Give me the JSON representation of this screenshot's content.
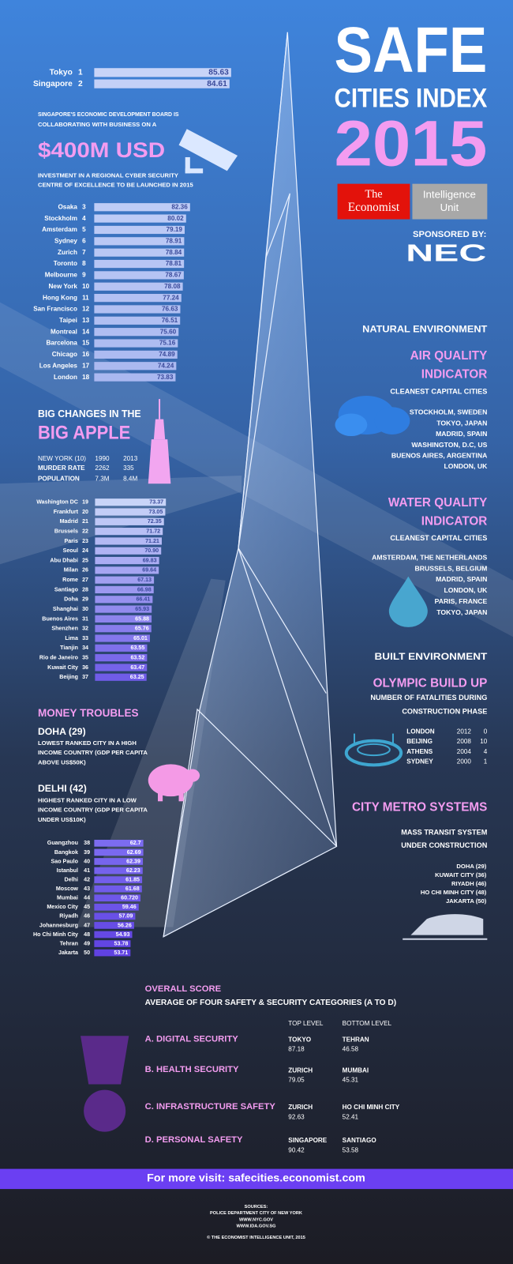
{
  "header": {
    "title": "SAFE",
    "subtitle": "CITIES INDEX",
    "year": "2015",
    "logo_economist": [
      "The",
      "Economist"
    ],
    "logo_eiu": [
      "Intelligence",
      "Unit"
    ],
    "sponsor_label": "SPONSORED BY:",
    "sponsor": "NEC"
  },
  "rankings": [
    {
      "rows": [
        {
          "city": "Tokyo",
          "rank": 1,
          "score": "85.63"
        },
        {
          "city": "Singapore",
          "rank": 2,
          "score": "84.61"
        }
      ]
    },
    {
      "rows": [
        {
          "city": "Osaka",
          "rank": 3,
          "score": "82.36"
        },
        {
          "city": "Stockholm",
          "rank": 4,
          "score": "80.02"
        },
        {
          "city": "Amsterdam",
          "rank": 5,
          "score": "79.19"
        },
        {
          "city": "Sydney",
          "rank": 6,
          "score": "78.91"
        },
        {
          "city": "Zurich",
          "rank": 7,
          "score": "78.84"
        },
        {
          "city": "Toronto",
          "rank": 8,
          "score": "78.81"
        },
        {
          "city": "Melbourne",
          "rank": 9,
          "score": "78.67"
        },
        {
          "city": "New York",
          "rank": 10,
          "score": "78.08"
        },
        {
          "city": "Hong Kong",
          "rank": 11,
          "score": "77.24"
        },
        {
          "city": "San Francisco",
          "rank": 12,
          "score": "76.63"
        },
        {
          "city": "Taipei",
          "rank": 13,
          "score": "76.51"
        },
        {
          "city": "Montreal",
          "rank": 14,
          "score": "75.60"
        },
        {
          "city": "Barcelona",
          "rank": 15,
          "score": "75.16"
        },
        {
          "city": "Chicago",
          "rank": 16,
          "score": "74.89"
        },
        {
          "city": "Los Angeles",
          "rank": 17,
          "score": "74.24"
        },
        {
          "city": "London",
          "rank": 18,
          "score": "73.83"
        }
      ]
    },
    {
      "rows": [
        {
          "city": "Washington DC",
          "rank": 19,
          "score": "73.37"
        },
        {
          "city": "Frankfurt",
          "rank": 20,
          "score": "73.05"
        },
        {
          "city": "Madrid",
          "rank": 21,
          "score": "72.35"
        },
        {
          "city": "Brussels",
          "rank": 22,
          "score": "71.72"
        },
        {
          "city": "Paris",
          "rank": 23,
          "score": "71.21"
        },
        {
          "city": "Seoul",
          "rank": 24,
          "score": "70.90"
        },
        {
          "city": "Abu Dhabi",
          "rank": 25,
          "score": "69.83"
        },
        {
          "city": "Milan",
          "rank": 26,
          "score": "69.64"
        },
        {
          "city": "Rome",
          "rank": 27,
          "score": "67.13"
        },
        {
          "city": "Santiago",
          "rank": 28,
          "score": "66.98"
        },
        {
          "city": "Doha",
          "rank": 29,
          "score": "66.41"
        },
        {
          "city": "Shanghai",
          "rank": 30,
          "score": "65.93"
        },
        {
          "city": "Buenos Aires",
          "rank": 31,
          "score": "65.88"
        },
        {
          "city": "Shenzhen",
          "rank": 32,
          "score": "65.76"
        },
        {
          "city": "Lima",
          "rank": 33,
          "score": "65.01"
        },
        {
          "city": "Tianjin",
          "rank": 34,
          "score": "63.55"
        },
        {
          "city": "Rio de Janeiro",
          "rank": 35,
          "score": "63.52"
        },
        {
          "city": "Kuwait City",
          "rank": 36,
          "score": "63.47"
        },
        {
          "city": "Beijing",
          "rank": 37,
          "score": "63.25"
        }
      ]
    },
    {
      "rows": [
        {
          "city": "Guangzhou",
          "rank": 38,
          "score": "62.7"
        },
        {
          "city": "Bangkok",
          "rank": 39,
          "score": "62.69"
        },
        {
          "city": "Sao Paulo",
          "rank": 40,
          "score": "62.39"
        },
        {
          "city": "Istanbul",
          "rank": 41,
          "score": "62.23"
        },
        {
          "city": "Delhi",
          "rank": 42,
          "score": "61.85"
        },
        {
          "city": "Moscow",
          "rank": 43,
          "score": "61.68"
        },
        {
          "city": "Mumbai",
          "rank": 44,
          "score": "60.720"
        },
        {
          "city": "Mexico City",
          "rank": 45,
          "score": "59.46"
        },
        {
          "city": "Riyadh",
          "rank": 46,
          "score": "57.09"
        },
        {
          "city": "Johannesburg",
          "rank": 47,
          "score": "56.26"
        },
        {
          "city": "Ho Chi Minh City",
          "rank": 48,
          "score": "54.93"
        },
        {
          "city": "Tehran",
          "rank": 49,
          "score": "53.78"
        },
        {
          "city": "Jakarta",
          "rank": 50,
          "score": "53.71"
        }
      ]
    }
  ],
  "cyber": {
    "lines": [
      "SINGAPORE'S ECONOMIC DEVELOPMENT BOARD IS",
      "COLLABORATING WITH BUSINESS ON A"
    ],
    "amount": "$400M USD",
    "detail": [
      "INVESTMENT IN A REGIONAL CYBER SECURITY",
      "CENTRE OF EXCELLENCE TO BE LAUNCHED IN 2015"
    ]
  },
  "big_apple": {
    "title": "BIG CHANGES IN THE",
    "highlight": "BIG APPLE",
    "header": [
      "NEW YORK (10)",
      "1990",
      "2013"
    ],
    "rows": [
      [
        "MURDER RATE",
        "2262",
        "335"
      ],
      [
        "POPULATION",
        "7.3M",
        "8.4M"
      ]
    ]
  },
  "money": {
    "title": "MONEY TROUBLES",
    "items": [
      {
        "heading": "DOHA (29)",
        "lines": [
          "LOWEST RANKED CITY IN A HIGH",
          "INCOME COUNTRY (GDP PER CAPITA",
          "ABOVE US$50K)"
        ]
      },
      {
        "heading": "DELHI (42)",
        "lines": [
          "HIGHEST RANKED CITY IN A LOW",
          "INCOME COUNTRY (GDP PER CAPITA",
          "UNDER US$10K)"
        ]
      }
    ]
  },
  "natural": {
    "title": "NATURAL ENVIRONMENT",
    "air": {
      "title": [
        "AIR QUALITY",
        "INDICATOR"
      ],
      "subtitle": "CLEANEST CAPITAL CITIES",
      "cities": [
        "STOCKHOLM, SWEDEN",
        "TOKYO, JAPAN",
        "MADRID, SPAIN",
        "WASHINGTON, D.C, US",
        "BUENOS AIRES, ARGENTINA",
        "LONDON, UK"
      ]
    },
    "water": {
      "title": [
        "WATER QUALITY",
        "INDICATOR"
      ],
      "subtitle": "CLEANEST CAPITAL CITIES",
      "cities": [
        "AMSTERDAM, THE NETHERLANDS",
        "BRUSSELS, BELGIUM",
        "MADRID, SPAIN",
        "LONDON, UK",
        "PARIS, FRANCE",
        "TOKYO, JAPAN"
      ]
    }
  },
  "built": {
    "title": "BUILT ENVIRONMENT",
    "olympic": {
      "title": "OLYMPIC BUILD UP",
      "subtitle": [
        "NUMBER OF FATALITIES DURING",
        "CONSTRUCTION PHASE"
      ],
      "rows": [
        [
          "LONDON",
          "2012",
          "0"
        ],
        [
          "BEIJING",
          "2008",
          "10"
        ],
        [
          "ATHENS",
          "2004",
          "4"
        ],
        [
          "SYDNEY",
          "2000",
          "1"
        ]
      ]
    },
    "metro": {
      "title": "CITY METRO SYSTEMS",
      "subtitle": [
        "MASS TRANSIT SYSTEM",
        "UNDER CONSTRUCTION"
      ],
      "cities": [
        "DOHA (29)",
        "KUWAIT CITY (36)",
        "RIYADH (46)",
        "HO CHI MINH CITY (48)",
        "JAKARTA (50)"
      ]
    }
  },
  "overall": {
    "title": "OVERALL SCORE",
    "subtitle": "AVERAGE OF FOUR SAFETY & SECURITY CATEGORIES (A TO D)",
    "headers": [
      "TOP LEVEL",
      "BOTTOM LEVEL"
    ],
    "rows": [
      {
        "category": "A. DIGITAL SECURITY",
        "top_city": "TOKYO",
        "top_score": "87.18",
        "bottom_city": "TEHRAN",
        "bottom_score": "46.58"
      },
      {
        "category": "B. HEALTH SECURITY",
        "top_city": "ZURICH",
        "top_score": "79.05",
        "bottom_city": "MUMBAI",
        "bottom_score": "45.31"
      },
      {
        "category": "C. INFRASTRUCTURE SAFETY",
        "top_city": "ZURICH",
        "top_score": "92.63",
        "bottom_city": "HO CHI MINH CITY",
        "bottom_score": "52.41"
      },
      {
        "category": "D. PERSONAL SAFETY",
        "top_city": "SINGAPORE",
        "top_score": "90.42",
        "bottom_city": "SANTIAGO",
        "bottom_score": "53.58"
      }
    ]
  },
  "footer": {
    "link": "For more visit: safecities.economist.com",
    "sources": [
      "SOURCES:",
      "POLICE DEPARTMENT CITY OF NEW YORK",
      "WWW.NYC.GOV",
      "WWW.IDA.GOV.SG"
    ],
    "copyright": "© THE ECONOMIST INTELLIGENCE UNIT, 2015"
  }
}
